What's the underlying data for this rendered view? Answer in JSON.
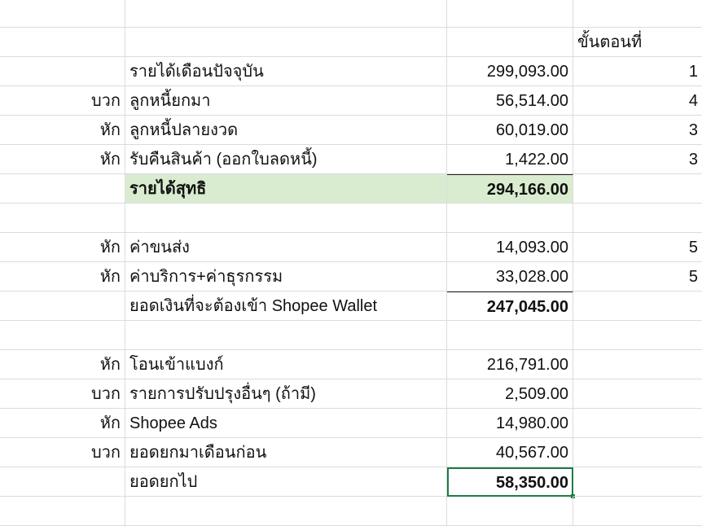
{
  "header": {
    "step_label": "ขั้นตอนที่"
  },
  "rows": [
    {
      "sign": "",
      "label": "",
      "amount": "",
      "step": ""
    },
    {
      "sign": "",
      "label": "",
      "amount": "",
      "step": "header"
    },
    {
      "sign": "",
      "label": "รายได้เดือนปัจจุบัน",
      "amount": "299,093.00",
      "step": "1"
    },
    {
      "sign": "บวก",
      "label": "ลูกหนี้ยกมา",
      "amount": "56,514.00",
      "step": "4"
    },
    {
      "sign": "หัก",
      "label": "ลูกหนี้ปลายงวด",
      "amount": "60,019.00",
      "step": "3"
    },
    {
      "sign": "หัก",
      "label": "รับคืนสินค้า (ออกใบลดหนี้)",
      "amount": "1,422.00",
      "step": "3"
    },
    {
      "sign": "",
      "label": "รายได้สุทธิ",
      "amount": "294,166.00",
      "step": "",
      "style": "total-green"
    },
    {
      "sign": "",
      "label": "",
      "amount": "",
      "step": ""
    },
    {
      "sign": "หัก",
      "label": "ค่าขนส่ง",
      "amount": "14,093.00",
      "step": "5"
    },
    {
      "sign": "หัก",
      "label": "ค่าบริการ+ค่าธุรกรรม",
      "amount": "33,028.00",
      "step": "5"
    },
    {
      "sign": "",
      "label": "ยอดเงินที่จะต้องเข้า Shopee Wallet",
      "amount": "247,045.00",
      "step": "",
      "style": "total"
    },
    {
      "sign": "",
      "label": "",
      "amount": "",
      "step": ""
    },
    {
      "sign": "หัก",
      "label": "โอนเข้าแบงก์",
      "amount": "216,791.00",
      "step": ""
    },
    {
      "sign": "บวก",
      "label": "รายการปรับปรุงอื่นๆ (ถ้ามี)",
      "amount": "2,509.00",
      "step": ""
    },
    {
      "sign": "หัก",
      "label": "Shopee Ads",
      "amount": "14,980.00",
      "step": ""
    },
    {
      "sign": "บวก",
      "label": "ยอดยกมาเดือนก่อน",
      "amount": "40,567.00",
      "step": ""
    },
    {
      "sign": "",
      "label": "ยอดยกไป",
      "amount": "58,350.00",
      "step": "",
      "style": "total-selected"
    },
    {
      "sign": "",
      "label": "",
      "amount": "",
      "step": ""
    }
  ],
  "colors": {
    "highlight": "#d9ecd0",
    "selection": "#1e7b45"
  }
}
